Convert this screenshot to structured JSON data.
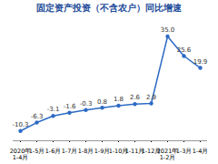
{
  "chart_data": {
    "type": "line",
    "title": "固定资产投资（不含农户）同比增速",
    "categories": [
      "2020年\n1-4月",
      "1-5月",
      "1-6月",
      "1-7月",
      "1-8月",
      "1-9月",
      "1-10月",
      "1-11月",
      "1-12月",
      "2021年\n1-2月",
      "1-3月",
      "1-4月"
    ],
    "values": [
      -10.3,
      -6.3,
      -3.1,
      -1.6,
      -0.3,
      0.8,
      1.8,
      2.6,
      2.9,
      35.0,
      25.6,
      19.9
    ],
    "value_labels": [
      "-10.3",
      "-6.3",
      "-3.1",
      "-1.6",
      "-0.3",
      "0.8",
      "1.8",
      "2.6",
      "2.9",
      "35.0",
      "25.6",
      "19.9"
    ],
    "color": "#2e6bc4",
    "marker": "circle",
    "ylim": [
      -15,
      40
    ],
    "data_labels": true,
    "tick_labels": "x",
    "grid": false
  }
}
